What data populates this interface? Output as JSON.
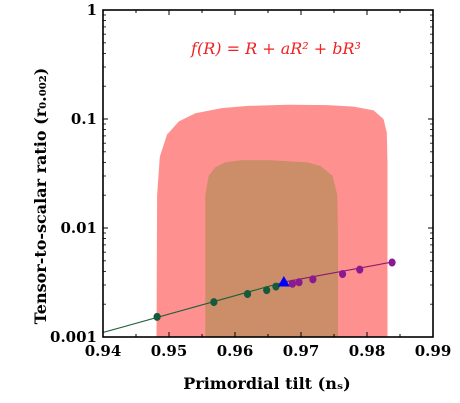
{
  "chart_data": {
    "type": "scatter",
    "title": "",
    "annotation": "f(R) = R + aR² + bR³",
    "xlabel": "Primordial tilt (nₛ)",
    "ylabel": "Tensor-to-scalar ratio (r₀.₀₀₂)",
    "xlim": [
      0.94,
      0.99
    ],
    "ylim": [
      0.001,
      1
    ],
    "y_scale": "log",
    "grid": false,
    "x_ticks": [
      {
        "value": 0.94,
        "label": "0.94"
      },
      {
        "value": 0.95,
        "label": "0.95"
      },
      {
        "value": 0.96,
        "label": "0.96"
      },
      {
        "value": 0.97,
        "label": "0.97"
      },
      {
        "value": 0.98,
        "label": "0.98"
      },
      {
        "value": 0.99,
        "label": "0.99"
      }
    ],
    "y_ticks": [
      {
        "value": 0.001,
        "label": "0.001"
      },
      {
        "value": 0.01,
        "label": "0.01"
      },
      {
        "value": 0.1,
        "label": "0.1"
      },
      {
        "value": 1,
        "label": "1"
      }
    ],
    "regions": [
      {
        "color": "#ff9090",
        "points": [
          [
            0.9481,
            0.001
          ],
          [
            0.9482,
            0.02
          ],
          [
            0.9486,
            0.045
          ],
          [
            0.9497,
            0.072
          ],
          [
            0.9515,
            0.095
          ],
          [
            0.954,
            0.113
          ],
          [
            0.958,
            0.126
          ],
          [
            0.962,
            0.132
          ],
          [
            0.968,
            0.135
          ],
          [
            0.974,
            0.134
          ],
          [
            0.978,
            0.13
          ],
          [
            0.981,
            0.12
          ],
          [
            0.9825,
            0.1
          ],
          [
            0.983,
            0.075
          ],
          [
            0.9831,
            0.04
          ],
          [
            0.9831,
            0.001
          ]
        ]
      },
      {
        "color": "#cc8e68",
        "points": [
          [
            0.9555,
            0.001
          ],
          [
            0.9555,
            0.02
          ],
          [
            0.956,
            0.03
          ],
          [
            0.957,
            0.036
          ],
          [
            0.9585,
            0.04
          ],
          [
            0.961,
            0.042
          ],
          [
            0.965,
            0.042
          ],
          [
            0.968,
            0.041
          ],
          [
            0.971,
            0.04
          ],
          [
            0.973,
            0.037
          ],
          [
            0.9748,
            0.03
          ],
          [
            0.9755,
            0.02
          ],
          [
            0.9756,
            0.008
          ],
          [
            0.9756,
            0.001
          ]
        ]
      }
    ],
    "lines": [
      {
        "color": "#1f5f3a",
        "x": [
          0.94,
          0.9675
        ],
        "y": [
          0.0011,
          0.0032
        ]
      },
      {
        "color": "#8a1a6e",
        "x": [
          0.9675,
          0.984
        ],
        "y": [
          0.0032,
          0.0049
        ]
      }
    ],
    "series": [
      {
        "color": "#155a3a",
        "marker": "circle",
        "x": [
          0.9482,
          0.9568,
          0.9619,
          0.9648,
          0.9662
        ],
        "y": [
          0.00153,
          0.00209,
          0.00248,
          0.00269,
          0.0029
        ]
      },
      {
        "color": "#0000ff",
        "marker": "triangle",
        "x": [
          0.9674
        ],
        "y": [
          0.0032
        ]
      },
      {
        "color": "#8a1a90",
        "marker": "circle",
        "x": [
          0.9687,
          0.9697,
          0.9718,
          0.9763,
          0.9789,
          0.9838
        ],
        "y": [
          0.00308,
          0.00318,
          0.00338,
          0.00378,
          0.00415,
          0.00482
        ]
      }
    ]
  }
}
